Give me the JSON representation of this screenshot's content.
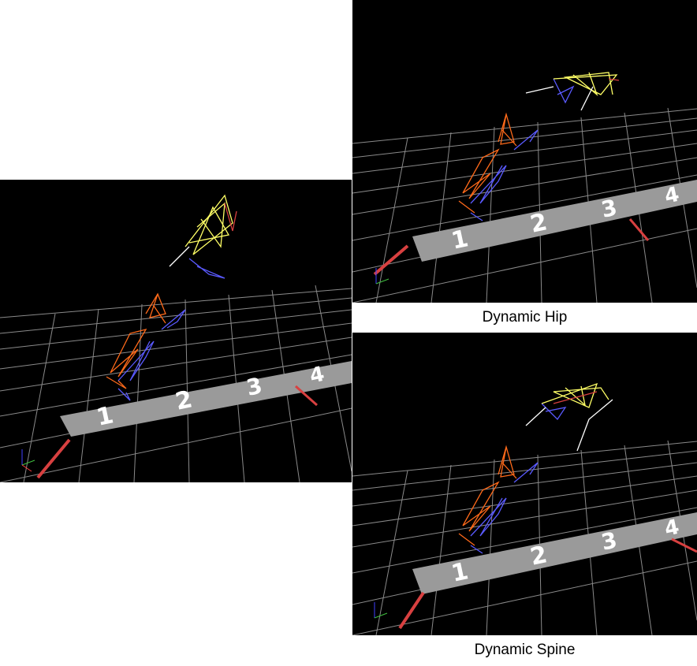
{
  "captions": {
    "hip": "Dynamic Hip",
    "spine": "Dynamic Spine"
  },
  "lane_numbers": [
    "1",
    "2",
    "3",
    "4"
  ],
  "colors": {
    "background": "#000000",
    "grid": "#8a8a8a",
    "lane": "#9a9a9a",
    "left_leg": "#ff6a1a",
    "right_leg": "#5a5aff",
    "torso": "#ffff66",
    "arrow": "#d84040"
  },
  "panels": [
    {
      "id": "reference",
      "caption": ""
    },
    {
      "id": "dynamic-hip",
      "caption": "Dynamic Hip"
    },
    {
      "id": "dynamic-spine",
      "caption": "Dynamic Spine"
    }
  ]
}
